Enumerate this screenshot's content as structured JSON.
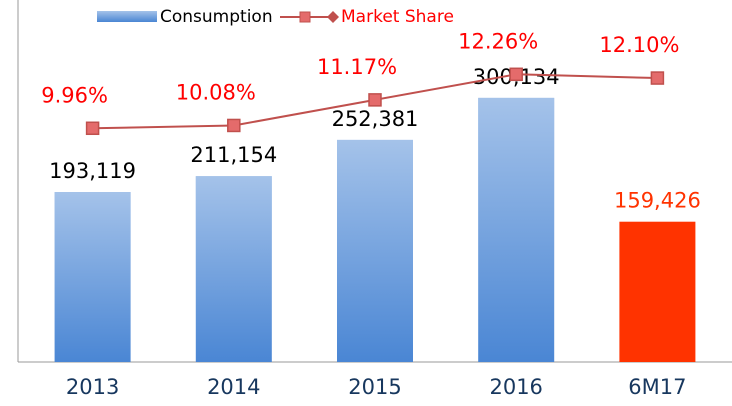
{
  "chart_data": {
    "type": "bar-line",
    "categories": [
      "2013",
      "2014",
      "2015",
      "2016",
      "6M17"
    ],
    "ylim": [
      0,
      400000
    ],
    "y2lim": [
      0,
      15
    ],
    "series": [
      {
        "name": "Consumption",
        "type": "bar",
        "color": "#4a86d4",
        "colors": [
          "#4a86d4",
          "#4a86d4",
          "#4a86d4",
          "#4a86d4",
          "#ff3300"
        ],
        "values": [
          193119,
          211154,
          252381,
          300134,
          159426
        ],
        "value_labels": [
          "193,119",
          "211,154",
          "252,381",
          "300,134",
          "159,426"
        ]
      },
      {
        "name": "Market Share",
        "type": "line",
        "axis": "y2",
        "color": "#c0504d",
        "label_color": "#ff0000",
        "values": [
          9.96,
          10.08,
          11.17,
          12.26,
          12.1
        ],
        "value_labels": [
          "9.96%",
          "10.08%",
          "11.17%",
          "12.26%",
          "12.10%"
        ]
      }
    ]
  }
}
